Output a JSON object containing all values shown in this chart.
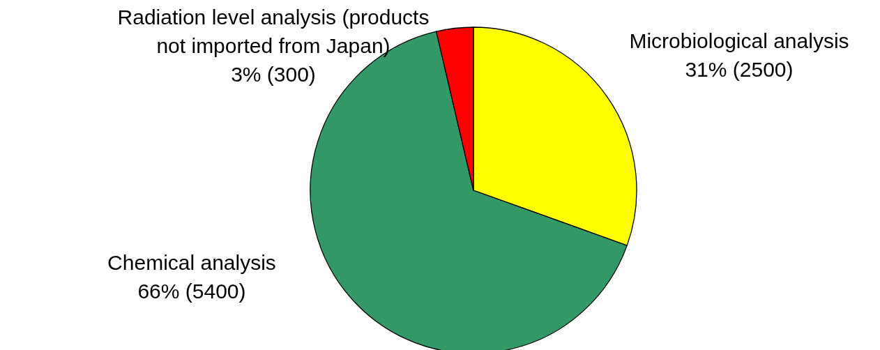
{
  "chart_data": {
    "type": "pie",
    "categories": [
      "Microbiological analysis",
      "Chemical analysis",
      "Radiation level analysis (products not imported from Japan)"
    ],
    "values": [
      2500,
      5400,
      300
    ],
    "value_labels": [
      "31% (2500)",
      "66% (5400)",
      "3% (300)"
    ],
    "colors": [
      "#ffff00",
      "#339966",
      "#ff0000"
    ]
  }
}
